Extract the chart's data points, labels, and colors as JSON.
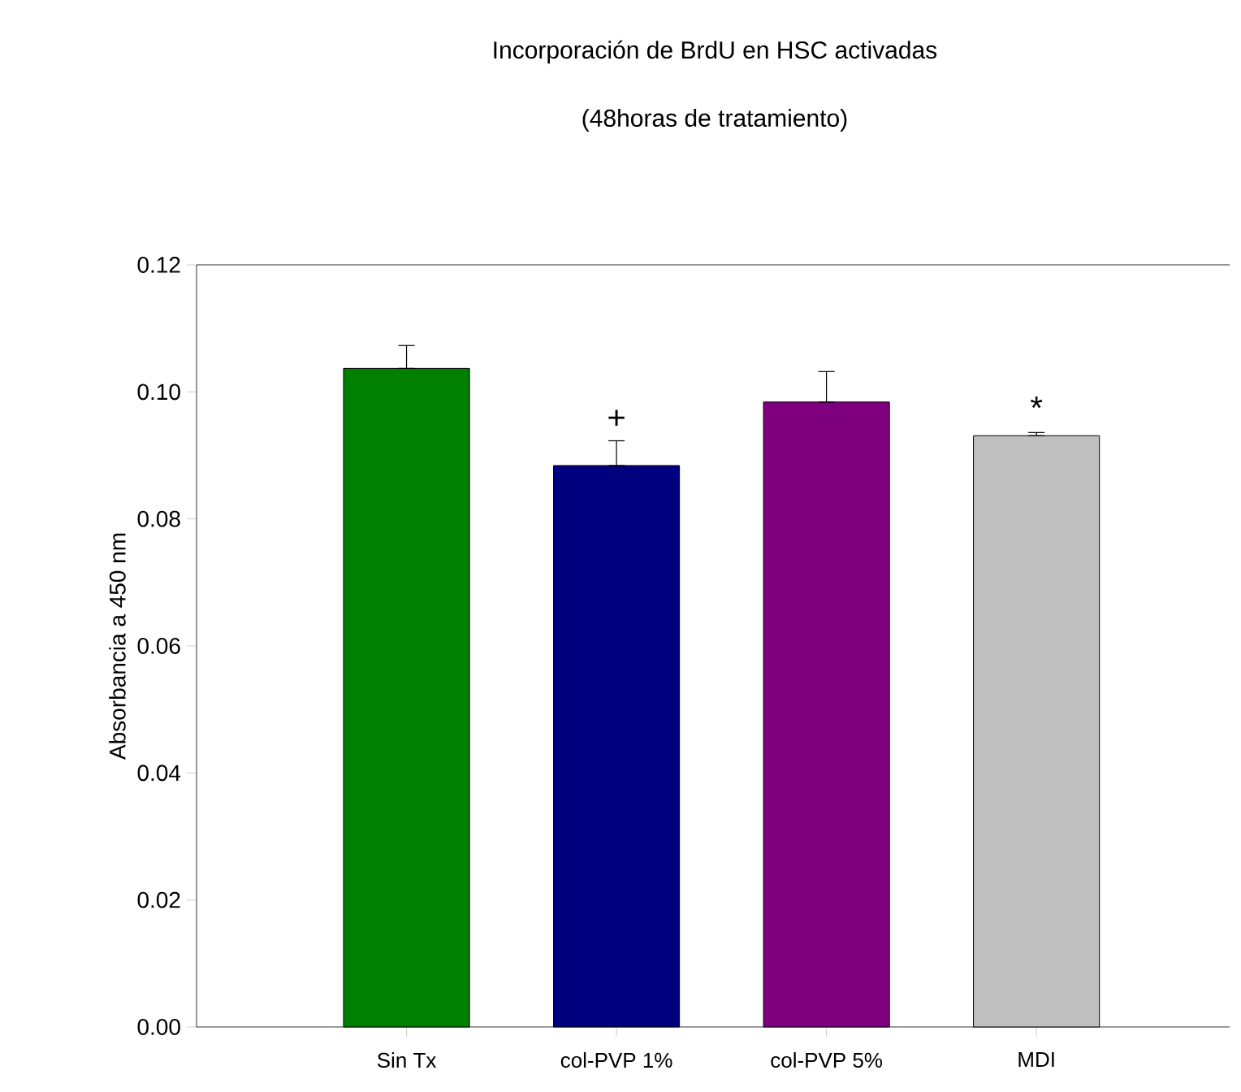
{
  "chart_data": {
    "type": "bar",
    "title": "Incorporación de BrdU en HSC activadas",
    "subtitle": "(48horas de tratamiento)",
    "ylabel": "Absorbancia a 450 nm",
    "categories": [
      "Sin Tx",
      "col-PVP 1%",
      "col-PVP 5%",
      "MDI"
    ],
    "values": [
      0.1037,
      0.0884,
      0.0984,
      0.0931
    ],
    "colors": [
      "#007f00",
      "#00007f",
      "#7f007f",
      "#bfbfbf"
    ],
    "errors": [
      [
        0.1037,
        0.1073
      ],
      [
        0.0884,
        0.0923
      ],
      [
        0.0984,
        0.1032
      ],
      [
        0.0931,
        0.0936
      ]
    ],
    "annotations": [
      "+",
      "*"
    ],
    "ylim": [
      0,
      0.12
    ],
    "yticks": [
      {
        "value": 0,
        "label": "0.00"
      },
      {
        "value": 0.02,
        "label": "0.02"
      },
      {
        "value": 0.04,
        "label": "0.04"
      },
      {
        "value": 0.06,
        "label": "0.06"
      },
      {
        "value": 0.08,
        "label": "0.08"
      },
      {
        "value": 0.1,
        "label": "0.10"
      },
      {
        "value": 0.12,
        "label": "0.12"
      }
    ],
    "grid": false
  }
}
